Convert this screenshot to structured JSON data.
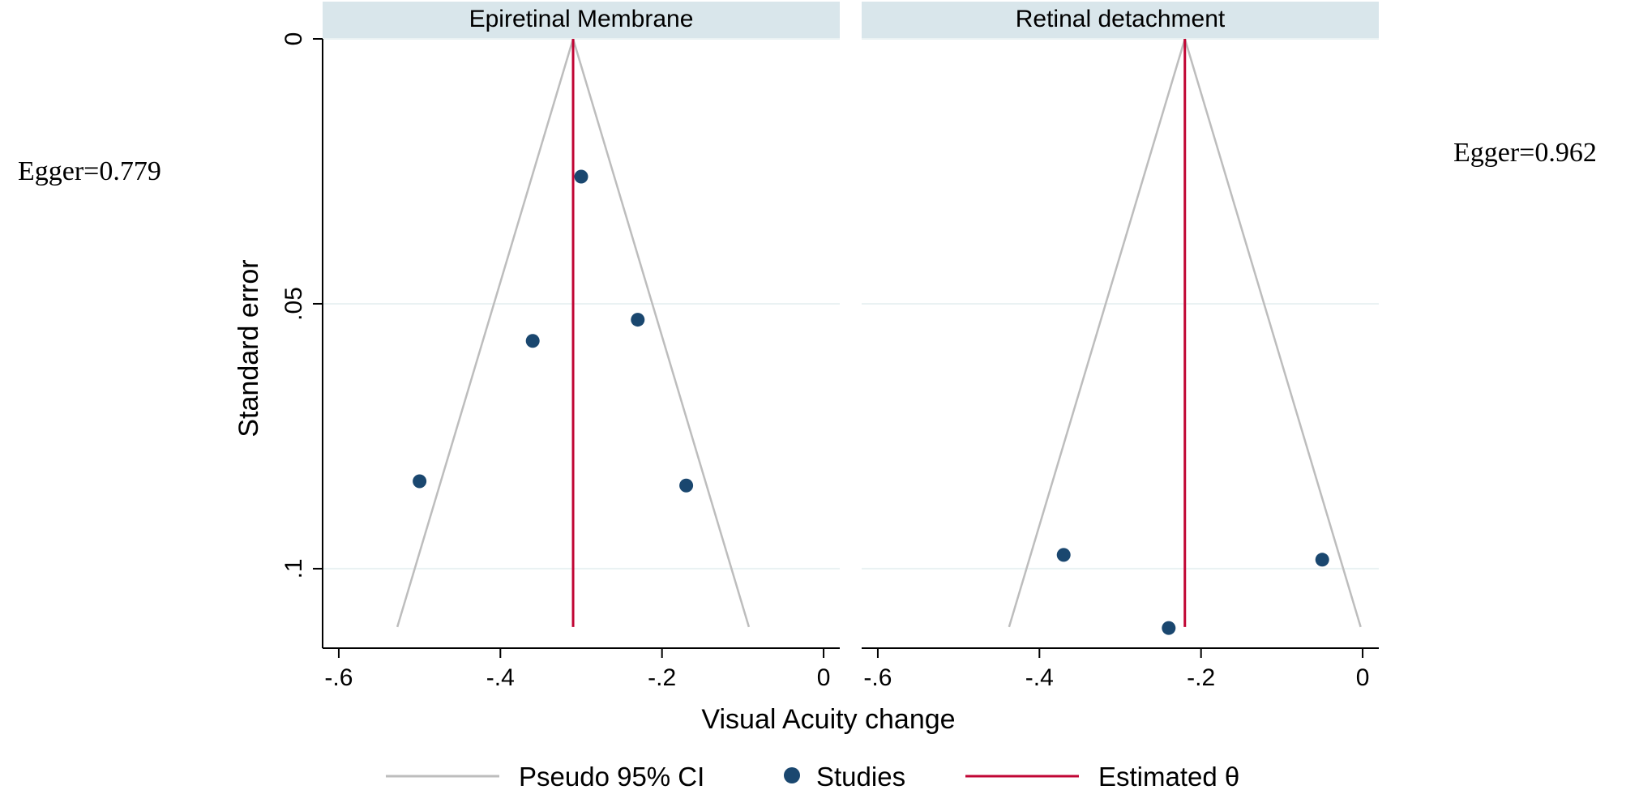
{
  "chart_data": {
    "type": "scatter",
    "xlabel": "Visual Acuity change",
    "ylabel": "Standard error",
    "y_axis_reversed": true,
    "grid": "horizontal",
    "legend": {
      "placement": "bottom",
      "entries": [
        "Pseudo 95% CI",
        "Studies",
        "Estimated θ"
      ]
    },
    "colors": {
      "ci_line": "#bdbdbd",
      "studies": "#1a476f",
      "estimate": "#c10534",
      "panel_header": "#d9e6eb",
      "grid": "#eaf2f3"
    },
    "panels": [
      {
        "title": "Epiretinal Membrane",
        "annotation": "Egger=0.779",
        "xlim": [
          -0.62,
          0.02
        ],
        "ylim": [
          0,
          0.115
        ],
        "xticks": [
          {
            "v": -0.6,
            "label": "-.6"
          },
          {
            "v": -0.4,
            "label": "-.4"
          },
          {
            "v": -0.2,
            "label": "-.2"
          },
          {
            "v": 0,
            "label": "0"
          }
        ],
        "yticks": [
          {
            "v": 0,
            "label": "0"
          },
          {
            "v": 0.05,
            "label": ".05"
          },
          {
            "v": 0.1,
            "label": ".1"
          }
        ],
        "estimate": -0.31,
        "ci_se_max": 0.111,
        "points": [
          {
            "x": -0.3,
            "y": 0.026
          },
          {
            "x": -0.23,
            "y": 0.053
          },
          {
            "x": -0.36,
            "y": 0.057
          },
          {
            "x": -0.5,
            "y": 0.0835
          },
          {
            "x": -0.17,
            "y": 0.0843
          }
        ]
      },
      {
        "title": "Retinal detachment",
        "annotation": "Egger=0.962",
        "xlim": [
          -0.62,
          0.02
        ],
        "ylim": [
          0,
          0.115
        ],
        "xticks": [
          {
            "v": -0.6,
            "label": "-.6"
          },
          {
            "v": -0.4,
            "label": "-.4"
          },
          {
            "v": -0.2,
            "label": "-.2"
          },
          {
            "v": 0,
            "label": "0"
          }
        ],
        "yticks": [],
        "estimate": -0.22,
        "ci_se_max": 0.111,
        "points": [
          {
            "x": -0.37,
            "y": 0.0974
          },
          {
            "x": -0.05,
            "y": 0.0983
          },
          {
            "x": -0.24,
            "y": 0.1112
          }
        ]
      }
    ]
  }
}
